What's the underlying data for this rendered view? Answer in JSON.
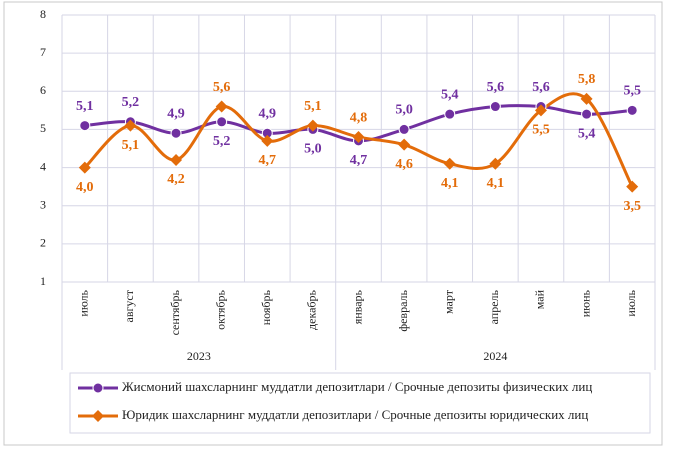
{
  "chart_data": {
    "type": "line",
    "groups": [
      {
        "label": "2023",
        "categories": [
          "июль",
          "август",
          "сентябрь",
          "октябрь",
          "ноябрь",
          "декабрь"
        ]
      },
      {
        "label": "2024",
        "categories": [
          "январь",
          "февраль",
          "март",
          "апрель",
          "май",
          "июнь",
          "июль"
        ]
      }
    ],
    "series": [
      {
        "name": "Жисмоний шахсларнинг муддатли депозитлари / Срочные депозиты физических лиц",
        "color": "#7030a0",
        "marker": "circle",
        "values": [
          5.1,
          5.2,
          4.9,
          5.2,
          4.9,
          5.0,
          4.7,
          5.0,
          5.4,
          5.6,
          5.6,
          5.4,
          5.5
        ],
        "value_labels": [
          "5,1",
          "5,2",
          "4,9",
          "5,2",
          "4,9",
          "5,0",
          "4,7",
          "5,0",
          "5,4",
          "5,6",
          "5,6",
          "5,4",
          "5,5"
        ]
      },
      {
        "name": "Юридик шахсларнинг муддатли депозитлари / Срочные депозиты юридических лиц",
        "color": "#e36c0a",
        "marker": "diamond",
        "values": [
          4.0,
          5.1,
          4.2,
          5.6,
          4.7,
          5.1,
          4.8,
          4.6,
          4.1,
          4.1,
          5.5,
          5.8,
          3.5
        ],
        "value_labels": [
          "4,0",
          "5,1",
          "4,2",
          "5,6",
          "4,7",
          "5,1",
          "4,8",
          "4,6",
          "4,1",
          "4,1",
          "5,5",
          "5,8",
          "3,5"
        ]
      }
    ],
    "ylim": [
      1,
      8
    ],
    "yticks": [
      1,
      2,
      3,
      4,
      5,
      6,
      7,
      8
    ],
    "grid": true,
    "smooth": true,
    "legend": "bottom"
  }
}
